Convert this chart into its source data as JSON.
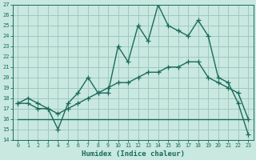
{
  "xlabel": "Humidex (Indice chaleur)",
  "background_color": "#c8e8e0",
  "grid_color": "#a0c8c0",
  "line_color": "#1a6b5a",
  "x_values": [
    0,
    1,
    2,
    3,
    4,
    5,
    6,
    7,
    8,
    9,
    10,
    11,
    12,
    13,
    14,
    15,
    16,
    17,
    18,
    19,
    20,
    21,
    22,
    23
  ],
  "series1": [
    17.5,
    18.0,
    17.5,
    17.0,
    15.0,
    17.5,
    18.5,
    20.0,
    18.5,
    18.5,
    23.0,
    21.5,
    25.0,
    23.5,
    27.0,
    25.0,
    24.5,
    24.0,
    25.5,
    24.0,
    20.0,
    19.5,
    17.5,
    14.5
  ],
  "series2": [
    17.5,
    17.5,
    17.0,
    17.0,
    16.5,
    17.0,
    17.5,
    18.0,
    18.5,
    19.0,
    19.5,
    19.5,
    20.0,
    20.5,
    20.5,
    21.0,
    21.0,
    21.5,
    21.5,
    20.0,
    19.5,
    19.0,
    18.5,
    16.0
  ],
  "series3": [
    16.0,
    16.0,
    16.0,
    16.0,
    16.0,
    16.0,
    16.0,
    16.0,
    16.0,
    16.0,
    16.0,
    16.0,
    16.0,
    16.0,
    16.0,
    16.0,
    16.0,
    16.0,
    16.0,
    16.0,
    16.0,
    16.0,
    16.0,
    16.0
  ],
  "ylim": [
    14,
    27
  ],
  "xlim": [
    -0.5,
    23.5
  ],
  "yticks": [
    14,
    15,
    16,
    17,
    18,
    19,
    20,
    21,
    22,
    23,
    24,
    25,
    26,
    27
  ],
  "xticks": [
    0,
    1,
    2,
    3,
    4,
    5,
    6,
    7,
    8,
    9,
    10,
    11,
    12,
    13,
    14,
    15,
    16,
    17,
    18,
    19,
    20,
    21,
    22,
    23
  ],
  "marker": "+",
  "markersize": 4,
  "linewidth": 1.0
}
